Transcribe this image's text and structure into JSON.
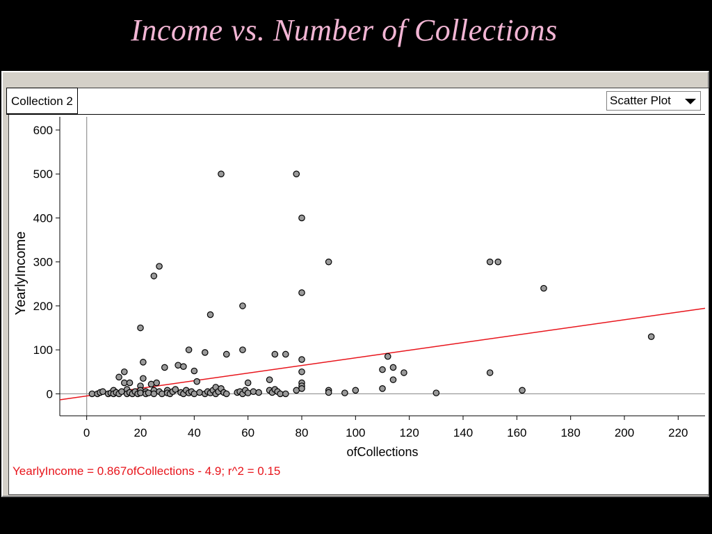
{
  "slide": {
    "title": "Income vs. Number of Collections"
  },
  "window": {
    "collection_tab": "Collection 2",
    "plot_type": "Scatter Plot",
    "regression_text": "YearlyIncome = 0.867ofCollections - 4.9; r^2 = 0.15"
  },
  "colors": {
    "point_fill": "#9a9a9a",
    "regression_line": "#e8141b",
    "title": "#f2b5d4"
  },
  "chart_data": {
    "type": "scatter",
    "title": "",
    "xlabel": "ofCollections",
    "ylabel": "YearlyIncome",
    "xlim": [
      -10,
      230
    ],
    "ylim": [
      -50,
      630
    ],
    "x_ticks": [
      0,
      20,
      40,
      60,
      80,
      100,
      120,
      140,
      160,
      180,
      200,
      220
    ],
    "y_ticks": [
      0,
      100,
      200,
      300,
      400,
      500,
      600
    ],
    "x_tick_labels": [
      "0",
      "20",
      "40",
      "60",
      "80",
      "100",
      "120",
      "140",
      "160",
      "180",
      "200",
      "220"
    ],
    "y_tick_labels": [
      "0",
      "100",
      "200",
      "300",
      "400",
      "500",
      "600"
    ],
    "regression": {
      "slope": 0.867,
      "intercept": -4.9,
      "r2": 0.15
    },
    "points": [
      [
        2,
        0
      ],
      [
        4,
        0
      ],
      [
        5,
        3
      ],
      [
        6,
        5
      ],
      [
        8,
        0
      ],
      [
        9,
        2
      ],
      [
        10,
        8
      ],
      [
        10,
        0
      ],
      [
        11,
        3
      ],
      [
        12,
        0
      ],
      [
        12,
        38
      ],
      [
        13,
        5
      ],
      [
        14,
        50
      ],
      [
        14,
        25
      ],
      [
        15,
        10
      ],
      [
        15,
        0
      ],
      [
        16,
        3
      ],
      [
        16,
        25
      ],
      [
        17,
        0
      ],
      [
        18,
        5
      ],
      [
        19,
        0
      ],
      [
        20,
        150
      ],
      [
        20,
        18
      ],
      [
        20,
        8
      ],
      [
        20,
        2
      ],
      [
        21,
        72
      ],
      [
        21,
        35
      ],
      [
        22,
        5
      ],
      [
        22,
        0
      ],
      [
        23,
        2
      ],
      [
        24,
        22
      ],
      [
        25,
        268
      ],
      [
        25,
        8
      ],
      [
        25,
        0
      ],
      [
        26,
        25
      ],
      [
        27,
        290
      ],
      [
        27,
        5
      ],
      [
        28,
        0
      ],
      [
        29,
        60
      ],
      [
        30,
        8
      ],
      [
        30,
        2
      ],
      [
        31,
        0
      ],
      [
        32,
        5
      ],
      [
        33,
        10
      ],
      [
        34,
        65
      ],
      [
        35,
        3
      ],
      [
        36,
        62
      ],
      [
        36,
        0
      ],
      [
        37,
        8
      ],
      [
        38,
        100
      ],
      [
        38,
        2
      ],
      [
        39,
        5
      ],
      [
        40,
        52
      ],
      [
        40,
        0
      ],
      [
        41,
        28
      ],
      [
        42,
        3
      ],
      [
        44,
        94
      ],
      [
        44,
        0
      ],
      [
        45,
        5
      ],
      [
        46,
        180
      ],
      [
        46,
        2
      ],
      [
        47,
        8
      ],
      [
        48,
        15
      ],
      [
        48,
        0
      ],
      [
        49,
        5
      ],
      [
        50,
        500
      ],
      [
        50,
        12
      ],
      [
        51,
        3
      ],
      [
        52,
        90
      ],
      [
        52,
        0
      ],
      [
        56,
        3
      ],
      [
        57,
        5
      ],
      [
        58,
        200
      ],
      [
        58,
        100
      ],
      [
        58,
        0
      ],
      [
        59,
        8
      ],
      [
        60,
        25
      ],
      [
        60,
        2
      ],
      [
        62,
        5
      ],
      [
        64,
        3
      ],
      [
        68,
        32
      ],
      [
        68,
        8
      ],
      [
        69,
        3
      ],
      [
        70,
        90
      ],
      [
        70,
        10
      ],
      [
        71,
        5
      ],
      [
        72,
        0
      ],
      [
        74,
        90
      ],
      [
        74,
        0
      ],
      [
        78,
        500
      ],
      [
        78,
        8
      ],
      [
        80,
        400
      ],
      [
        80,
        230
      ],
      [
        80,
        78
      ],
      [
        80,
        50
      ],
      [
        80,
        25
      ],
      [
        80,
        18
      ],
      [
        80,
        12
      ],
      [
        90,
        300
      ],
      [
        90,
        8
      ],
      [
        90,
        3
      ],
      [
        96,
        2
      ],
      [
        100,
        8
      ],
      [
        110,
        55
      ],
      [
        110,
        12
      ],
      [
        112,
        85
      ],
      [
        114,
        60
      ],
      [
        114,
        32
      ],
      [
        118,
        48
      ],
      [
        130,
        2
      ],
      [
        150,
        300
      ],
      [
        150,
        48
      ],
      [
        153,
        300
      ],
      [
        162,
        8
      ],
      [
        170,
        240
      ],
      [
        210,
        130
      ]
    ]
  }
}
